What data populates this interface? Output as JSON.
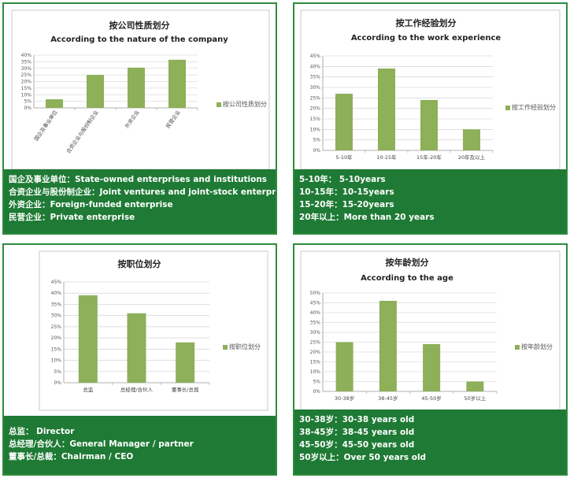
{
  "colors": {
    "panel_border": "#2e8b3e",
    "caption_bg": "#1e7a34",
    "bar": "#8db058",
    "grid": "#cccccc",
    "axis": "#999999"
  },
  "panels": [
    {
      "chart_data": {
        "type": "bar",
        "title": "按公司性质划分",
        "subtitle": "According to the nature of the company",
        "categories": [
          "国企及事业单位",
          "合资企业与股份制企业",
          "外资企业",
          "民营企业"
        ],
        "series": [
          {
            "name": "按公司性质划分",
            "values": [
              6.5,
              25,
              30.5,
              36.5
            ]
          }
        ],
        "y_ticks": [
          "0%",
          "5%",
          "10%",
          "15%",
          "20%",
          "25%",
          "30%",
          "35%",
          "40%"
        ],
        "ylim": [
          0,
          40
        ],
        "rotated_labels": true,
        "grid": true,
        "legend": "right"
      },
      "caption": [
        "国企及事业单位：State-owned enterprises and institutions",
        "合资企业与股份制企业：Joint ventures and joint-stock enterprises",
        "外资企业：Foreign-funded enterprise",
        "民营企业：Private enterprise"
      ]
    },
    {
      "chart_data": {
        "type": "bar",
        "title": "按工作经验划分",
        "subtitle": "According to the work experience",
        "categories": [
          "5-10年",
          "10-15年",
          "15年-20年",
          "20年及以上"
        ],
        "series": [
          {
            "name": "按工作经验划分",
            "values": [
              27,
              39,
              24,
              10
            ]
          }
        ],
        "y_ticks": [
          "0%",
          "5%",
          "10%",
          "15%",
          "20%",
          "25%",
          "30%",
          "35%",
          "40%",
          "45%"
        ],
        "ylim": [
          0,
          45
        ],
        "rotated_labels": false,
        "grid": true,
        "legend": "right"
      },
      "caption": [
        "5-10年：  5-10years",
        "10-15年：10-15years",
        "15-20年：15-20years",
        "20年以上：More than 20 years"
      ]
    },
    {
      "chart_data": {
        "type": "bar",
        "title": "按职位划分",
        "subtitle": "",
        "categories": [
          "总监",
          "总经理/合伙人",
          "董事长/总裁"
        ],
        "series": [
          {
            "name": "按职位划分",
            "values": [
              39,
              31,
              18
            ]
          }
        ],
        "y_ticks": [
          "0%",
          "5%",
          "10%",
          "15%",
          "20%",
          "25%",
          "30%",
          "35%",
          "40%",
          "45%"
        ],
        "ylim": [
          0,
          45
        ],
        "rotated_labels": false,
        "grid": true,
        "legend": "right"
      },
      "caption": [
        "总监：  Director",
        "总经理/合伙人：General Manager / partner",
        "董事长/总裁：Chairman / CEO"
      ]
    },
    {
      "chart_data": {
        "type": "bar",
        "title": "按年龄划分",
        "subtitle": "According to the age",
        "categories": [
          "30-38岁",
          "38-45岁",
          "45-50岁",
          "50岁以上"
        ],
        "series": [
          {
            "name": "按年龄划分",
            "values": [
              25,
              46,
              24,
              5
            ]
          }
        ],
        "y_ticks": [
          "0%",
          "5%",
          "10%",
          "15%",
          "20%",
          "25%",
          "30%",
          "35%",
          "40%",
          "45%",
          "50%"
        ],
        "ylim": [
          0,
          50
        ],
        "rotated_labels": false,
        "grid": true,
        "legend": "right"
      },
      "caption": [
        "30-38岁：30-38 years old",
        "38-45岁：38-45 years old",
        "45-50岁：45-50 years old",
        "50岁以上：Over 50 years old"
      ]
    }
  ]
}
